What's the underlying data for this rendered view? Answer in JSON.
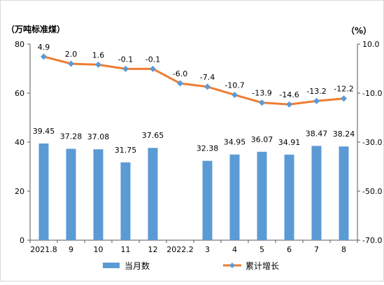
{
  "chart_data": {
    "type": "bar+line",
    "title": "",
    "left_unit_label": "（万吨标准煤）",
    "right_unit_label": "（%）",
    "categories": [
      "2021.8",
      "9",
      "10",
      "11",
      "12",
      "2022.2",
      "3",
      "4",
      "5",
      "6",
      "7",
      "8"
    ],
    "series": [
      {
        "name": "当月数",
        "type": "bar",
        "axis": "left",
        "color": "#5b9bd5",
        "values": [
          39.45,
          37.28,
          37.08,
          31.75,
          37.65,
          null,
          32.38,
          34.95,
          36.07,
          34.91,
          38.47,
          38.24
        ],
        "labels": [
          "39.45",
          "37.28",
          "37.08",
          "31.75",
          "37.65",
          "",
          "32.38",
          "34.95",
          "36.07",
          "34.91",
          "38.47",
          "38.24"
        ]
      },
      {
        "name": "累计增长",
        "type": "line",
        "axis": "right",
        "color": "#ed7d31",
        "marker_color": "#5b9bd5",
        "values": [
          4.9,
          2.0,
          1.6,
          -0.1,
          -0.1,
          -6.0,
          -7.4,
          -10.7,
          -13.9,
          -14.6,
          -13.2,
          -12.2
        ],
        "labels": [
          "4.9",
          "2.0",
          "1.6",
          "-0.1",
          "-0.1",
          "-6.0",
          "-7.4",
          "-10.7",
          "-13.9",
          "-14.6",
          "-13.2",
          "-12.2"
        ]
      }
    ],
    "left_axis": {
      "min": 0,
      "max": 80,
      "ticks": [
        0,
        20,
        40,
        60,
        80
      ],
      "tick_labels": [
        "0",
        "20",
        "40",
        "60",
        "80"
      ]
    },
    "right_axis": {
      "min": -70,
      "max": 10,
      "ticks": [
        10,
        -10,
        -30,
        -50,
        -70
      ],
      "tick_labels": [
        "10.0",
        "-10.0",
        "-30.0",
        "-50.0",
        "-70.0"
      ]
    },
    "grid": false,
    "legend_position": "bottom"
  }
}
